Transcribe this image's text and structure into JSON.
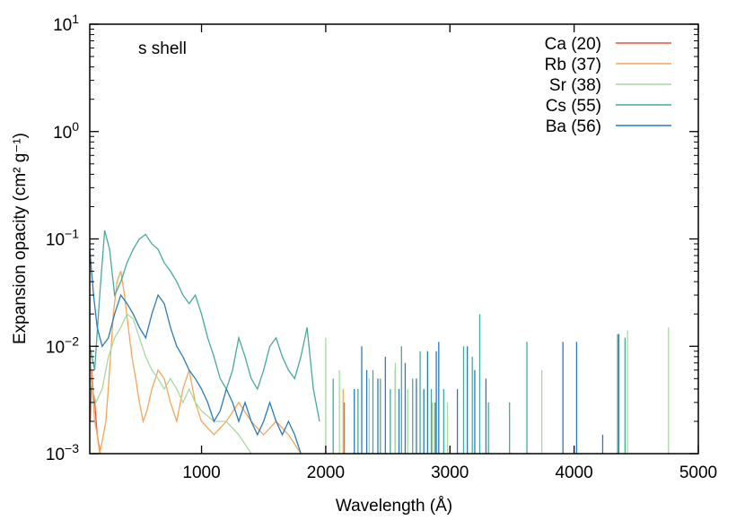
{
  "chart_data": {
    "type": "line",
    "annotation": "s shell",
    "xlabel": "Wavelength (Å)",
    "ylabel": "Expansion opacity (cm² g⁻¹)",
    "xlim": [
      100,
      5000
    ],
    "ylim": [
      0.001,
      10
    ],
    "y_scale": "log",
    "grid": false,
    "legend_position": "top-right",
    "x_ticks": [
      {
        "value": 1000,
        "label": "1000"
      },
      {
        "value": 2000,
        "label": "2000"
      },
      {
        "value": 3000,
        "label": "3000"
      },
      {
        "value": 4000,
        "label": "4000"
      },
      {
        "value": 5000,
        "label": "5000"
      }
    ],
    "y_ticks": [
      {
        "value": 0.001,
        "base": "10",
        "exp": "−3"
      },
      {
        "value": 0.01,
        "base": "10",
        "exp": "−2"
      },
      {
        "value": 0.1,
        "base": "10",
        "exp": "−1"
      },
      {
        "value": 1,
        "base": "10",
        "exp": "0"
      },
      {
        "value": 10,
        "base": "10",
        "exp": "1"
      }
    ],
    "series": [
      {
        "name": "Ca (20)",
        "color": "#e8543a",
        "points": [
          [
            105,
            0.002
          ],
          [
            115,
            0.006
          ],
          [
            125,
            0.004
          ],
          [
            140,
            0.003
          ],
          [
            160,
            0.0015
          ],
          [
            185,
            0.001
          ]
        ]
      },
      {
        "name": "Rb (37)",
        "color": "#f5a65b",
        "points": [
          [
            100,
            0.01
          ],
          [
            120,
            0.004
          ],
          [
            140,
            0.002
          ],
          [
            160,
            0.0015
          ],
          [
            180,
            0.001
          ],
          [
            200,
            0.0013
          ],
          [
            230,
            0.002
          ],
          [
            260,
            0.006
          ],
          [
            290,
            0.02
          ],
          [
            320,
            0.04
          ],
          [
            350,
            0.05
          ],
          [
            380,
            0.03
          ],
          [
            410,
            0.015
          ],
          [
            440,
            0.008
          ],
          [
            470,
            0.005
          ],
          [
            500,
            0.003
          ],
          [
            530,
            0.002
          ],
          [
            560,
            0.0025
          ],
          [
            600,
            0.004
          ],
          [
            650,
            0.006
          ],
          [
            700,
            0.005
          ],
          [
            750,
            0.003
          ],
          [
            800,
            0.002
          ],
          [
            850,
            0.004
          ],
          [
            900,
            0.006
          ],
          [
            950,
            0.003
          ],
          [
            1000,
            0.002
          ],
          [
            1100,
            0.0015
          ],
          [
            1200,
            0.002
          ],
          [
            1300,
            0.003
          ],
          [
            1400,
            0.002
          ],
          [
            1500,
            0.0015
          ],
          [
            1600,
            0.002
          ],
          [
            1700,
            0.0015
          ],
          [
            1800,
            0.001
          ]
        ]
      },
      {
        "name": "Sr (38)",
        "color": "#a9d9a0",
        "points": [
          [
            100,
            0.005
          ],
          [
            150,
            0.003
          ],
          [
            200,
            0.004
          ],
          [
            250,
            0.008
          ],
          [
            300,
            0.012
          ],
          [
            350,
            0.015
          ],
          [
            400,
            0.02
          ],
          [
            450,
            0.018
          ],
          [
            500,
            0.012
          ],
          [
            550,
            0.008
          ],
          [
            600,
            0.006
          ],
          [
            650,
            0.005
          ],
          [
            700,
            0.004
          ],
          [
            750,
            0.005
          ],
          [
            800,
            0.004
          ],
          [
            850,
            0.003
          ],
          [
            900,
            0.004
          ],
          [
            950,
            0.003
          ],
          [
            1000,
            0.0025
          ],
          [
            1100,
            0.002
          ],
          [
            1200,
            0.002
          ],
          [
            1300,
            0.0015
          ],
          [
            1400,
            0.001
          ]
        ]
      },
      {
        "name": "Cs (55)",
        "color": "#48a99b",
        "points": [
          [
            100,
            0.01
          ],
          [
            140,
            0.006
          ],
          [
            180,
            0.03
          ],
          [
            220,
            0.12
          ],
          [
            260,
            0.08
          ],
          [
            300,
            0.03
          ],
          [
            350,
            0.04
          ],
          [
            400,
            0.06
          ],
          [
            450,
            0.08
          ],
          [
            500,
            0.1
          ],
          [
            550,
            0.11
          ],
          [
            600,
            0.09
          ],
          [
            650,
            0.08
          ],
          [
            700,
            0.06
          ],
          [
            750,
            0.05
          ],
          [
            800,
            0.04
          ],
          [
            850,
            0.03
          ],
          [
            900,
            0.025
          ],
          [
            950,
            0.03
          ],
          [
            1000,
            0.02
          ],
          [
            1050,
            0.012
          ],
          [
            1100,
            0.008
          ],
          [
            1150,
            0.005
          ],
          [
            1200,
            0.004
          ],
          [
            1250,
            0.006
          ],
          [
            1300,
            0.012
          ],
          [
            1350,
            0.008
          ],
          [
            1400,
            0.005
          ],
          [
            1450,
            0.004
          ],
          [
            1500,
            0.006
          ],
          [
            1550,
            0.01
          ],
          [
            1600,
            0.012
          ],
          [
            1650,
            0.008
          ],
          [
            1700,
            0.006
          ],
          [
            1750,
            0.005
          ],
          [
            1800,
            0.008
          ],
          [
            1850,
            0.015
          ],
          [
            1900,
            0.004
          ],
          [
            1950,
            0.002
          ]
        ]
      },
      {
        "name": "Ba (56)",
        "color": "#2b7bb9",
        "points": [
          [
            100,
            0.08
          ],
          [
            130,
            0.03
          ],
          [
            160,
            0.015
          ],
          [
            200,
            0.01
          ],
          [
            250,
            0.012
          ],
          [
            300,
            0.02
          ],
          [
            350,
            0.03
          ],
          [
            400,
            0.025
          ],
          [
            450,
            0.02
          ],
          [
            500,
            0.015
          ],
          [
            550,
            0.012
          ],
          [
            600,
            0.02
          ],
          [
            650,
            0.03
          ],
          [
            700,
            0.025
          ],
          [
            750,
            0.015
          ],
          [
            800,
            0.01
          ],
          [
            850,
            0.008
          ],
          [
            900,
            0.006
          ],
          [
            950,
            0.005
          ],
          [
            1000,
            0.004
          ],
          [
            1050,
            0.003
          ],
          [
            1100,
            0.002
          ],
          [
            1150,
            0.0025
          ],
          [
            1200,
            0.004
          ],
          [
            1250,
            0.003
          ],
          [
            1300,
            0.002
          ],
          [
            1350,
            0.003
          ],
          [
            1400,
            0.002
          ],
          [
            1450,
            0.0015
          ],
          [
            1500,
            0.002
          ],
          [
            1550,
            0.003
          ],
          [
            1600,
            0.002
          ],
          [
            1650,
            0.0015
          ],
          [
            1700,
            0.002
          ],
          [
            1750,
            0.0015
          ],
          [
            1800,
            0.001
          ]
        ]
      }
    ],
    "line_spikes": [
      {
        "series": "Cs (55)",
        "x": [
          2060,
          2150,
          2260,
          2380,
          2440,
          2520,
          2610,
          2700,
          2760,
          2850,
          2880,
          2950,
          3110,
          3180,
          3240,
          3310,
          3480,
          3620,
          4350,
          4410
        ],
        "peak": [
          0.005,
          0.003,
          0.004,
          0.006,
          0.005,
          0.004,
          0.01,
          0.005,
          0.009,
          0.004,
          0.003,
          0.004,
          0.01,
          0.008,
          0.02,
          0.003,
          0.003,
          0.011,
          0.013,
          0.012
        ]
      },
      {
        "series": "Ba (56)",
        "x": [
          2230,
          2290,
          2330,
          2420,
          2480,
          2560,
          2590,
          2640,
          2730,
          2790,
          2820,
          2890,
          2910,
          3060,
          3140,
          3200,
          3290,
          3910,
          4020,
          4230,
          4360
        ],
        "peak": [
          0.004,
          0.01,
          0.006,
          0.005,
          0.008,
          0.006,
          0.004,
          0.007,
          0.005,
          0.004,
          0.009,
          0.009,
          0.011,
          0.004,
          0.01,
          0.006,
          0.005,
          0.011,
          0.011,
          0.0015,
          0.013
        ]
      },
      {
        "series": "Sr (38)",
        "x": [
          2000,
          2110,
          2350,
          2560,
          2660,
          2980,
          3740,
          4430,
          4760
        ],
        "peak": [
          0.012,
          0.006,
          0.005,
          0.007,
          0.004,
          0.003,
          0.006,
          0.014,
          0.015
        ]
      },
      {
        "series": "Rb (37)",
        "x": [
          2140,
          2860
        ],
        "peak": [
          0.004,
          0.003
        ]
      }
    ]
  }
}
